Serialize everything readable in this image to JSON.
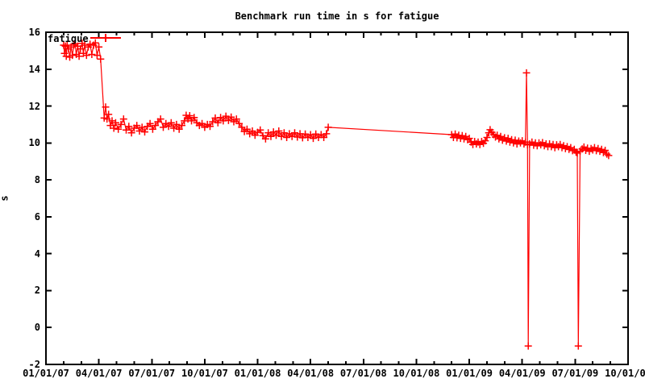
{
  "page": {
    "background": "#ffffff",
    "text_color": "#000000"
  },
  "chart_data": {
    "type": "line",
    "title": "Benchmark run time in s for fatigue",
    "xlabel": "",
    "ylabel": "s",
    "ylim": [
      -2,
      16
    ],
    "y_tick_step": 2,
    "y_tick_labels": [
      "-2",
      "0",
      "2",
      "4",
      "6",
      "8",
      "10",
      "12",
      "14",
      "16"
    ],
    "x_range_dates": [
      "01/01/07",
      "10/01/09"
    ],
    "x_span_months": 33,
    "x_major_tick_every_months": 3,
    "x_minor_tick_every_months": 1,
    "x_tick_labels": [
      "01/01/07",
      "04/01/07",
      "07/01/07",
      "10/01/07",
      "01/01/08",
      "04/01/08",
      "07/01/08",
      "10/01/08",
      "01/01/09",
      "04/01/09",
      "07/01/09",
      "10/01/09"
    ],
    "grid": "off",
    "frame_color": "#000000",
    "legend": {
      "label": "fatigue",
      "position": "top-left-inside"
    },
    "series": [
      {
        "name": "fatigue",
        "color": "#ff0000",
        "marker": "plus",
        "x_unit": "months_since_01/01/07",
        "points": [
          [
            1.0,
            15.3
          ],
          [
            1.05,
            14.85
          ],
          [
            1.1,
            15.25
          ],
          [
            1.15,
            14.7
          ],
          [
            1.2,
            15.3
          ],
          [
            1.28,
            15.1
          ],
          [
            1.35,
            14.65
          ],
          [
            1.42,
            15.2
          ],
          [
            1.5,
            14.75
          ],
          [
            1.58,
            15.3
          ],
          [
            1.65,
            15.38
          ],
          [
            1.72,
            14.8
          ],
          [
            1.8,
            15.25
          ],
          [
            1.88,
            14.7
          ],
          [
            1.95,
            15.1
          ],
          [
            2.05,
            15.4
          ],
          [
            2.12,
            14.85
          ],
          [
            2.2,
            15.3
          ],
          [
            2.3,
            14.75
          ],
          [
            2.4,
            15.2
          ],
          [
            2.5,
            15.35
          ],
          [
            2.6,
            14.8
          ],
          [
            2.7,
            15.3
          ],
          [
            2.8,
            15.42
          ],
          [
            2.9,
            14.75
          ],
          [
            3.0,
            15.2
          ],
          [
            3.1,
            14.55
          ],
          [
            3.3,
            11.35
          ],
          [
            3.38,
            11.95
          ],
          [
            3.46,
            11.3
          ],
          [
            3.55,
            11.55
          ],
          [
            3.65,
            10.95
          ],
          [
            3.75,
            11.2
          ],
          [
            3.85,
            10.8
          ],
          [
            3.95,
            11.1
          ],
          [
            4.1,
            10.75
          ],
          [
            4.25,
            11.0
          ],
          [
            4.4,
            11.3
          ],
          [
            4.55,
            10.7
          ],
          [
            4.7,
            10.9
          ],
          [
            4.85,
            10.55
          ],
          [
            5.0,
            10.8
          ],
          [
            5.15,
            10.95
          ],
          [
            5.3,
            10.65
          ],
          [
            5.45,
            10.85
          ],
          [
            5.6,
            10.6
          ],
          [
            5.75,
            10.9
          ],
          [
            5.9,
            11.05
          ],
          [
            6.05,
            10.75
          ],
          [
            6.2,
            10.95
          ],
          [
            6.35,
            11.15
          ],
          [
            6.5,
            11.3
          ],
          [
            6.65,
            10.85
          ],
          [
            6.8,
            11.05
          ],
          [
            6.95,
            10.9
          ],
          [
            7.1,
            11.1
          ],
          [
            7.25,
            10.8
          ],
          [
            7.4,
            11.0
          ],
          [
            7.55,
            10.75
          ],
          [
            7.7,
            10.95
          ],
          [
            7.85,
            11.2
          ],
          [
            7.95,
            11.5
          ],
          [
            8.05,
            11.3
          ],
          [
            8.15,
            11.48
          ],
          [
            8.25,
            11.2
          ],
          [
            8.4,
            11.38
          ],
          [
            8.55,
            11.1
          ],
          [
            8.7,
            10.95
          ],
          [
            8.85,
            11.05
          ],
          [
            9.0,
            10.85
          ],
          [
            9.15,
            11.0
          ],
          [
            9.3,
            10.9
          ],
          [
            9.45,
            11.15
          ],
          [
            9.6,
            11.35
          ],
          [
            9.75,
            11.1
          ],
          [
            9.9,
            11.38
          ],
          [
            10.05,
            11.2
          ],
          [
            10.2,
            11.45
          ],
          [
            10.35,
            11.22
          ],
          [
            10.5,
            11.4
          ],
          [
            10.65,
            11.15
          ],
          [
            10.8,
            11.3
          ],
          [
            10.95,
            11.05
          ],
          [
            11.1,
            10.85
          ],
          [
            11.25,
            10.62
          ],
          [
            11.4,
            10.75
          ],
          [
            11.55,
            10.5
          ],
          [
            11.7,
            10.65
          ],
          [
            11.85,
            10.42
          ],
          [
            12.0,
            10.58
          ],
          [
            12.15,
            10.7
          ],
          [
            12.3,
            10.4
          ],
          [
            12.45,
            10.22
          ],
          [
            12.6,
            10.55
          ],
          [
            12.75,
            10.35
          ],
          [
            12.9,
            10.6
          ],
          [
            13.05,
            10.42
          ],
          [
            13.2,
            10.65
          ],
          [
            13.35,
            10.35
          ],
          [
            13.5,
            10.55
          ],
          [
            13.65,
            10.3
          ],
          [
            13.8,
            10.5
          ],
          [
            13.95,
            10.35
          ],
          [
            14.1,
            10.55
          ],
          [
            14.25,
            10.32
          ],
          [
            14.4,
            10.5
          ],
          [
            14.55,
            10.28
          ],
          [
            14.7,
            10.48
          ],
          [
            14.85,
            10.3
          ],
          [
            15.0,
            10.45
          ],
          [
            15.15,
            10.25
          ],
          [
            15.3,
            10.48
          ],
          [
            15.45,
            10.3
          ],
          [
            15.6,
            10.45
          ],
          [
            15.75,
            10.3
          ],
          [
            15.9,
            10.5
          ],
          [
            16.0,
            10.85
          ],
          [
            23.0,
            10.45
          ],
          [
            23.1,
            10.3
          ],
          [
            23.2,
            10.48
          ],
          [
            23.3,
            10.28
          ],
          [
            23.4,
            10.42
          ],
          [
            23.5,
            10.25
          ],
          [
            23.6,
            10.4
          ],
          [
            23.7,
            10.22
          ],
          [
            23.8,
            10.35
          ],
          [
            23.9,
            10.18
          ],
          [
            24.0,
            10.25
          ],
          [
            24.1,
            10.05
          ],
          [
            24.2,
            9.92
          ],
          [
            24.3,
            10.08
          ],
          [
            24.4,
            9.95
          ],
          [
            24.5,
            10.05
          ],
          [
            24.6,
            9.92
          ],
          [
            24.7,
            10.08
          ],
          [
            24.8,
            9.98
          ],
          [
            24.9,
            10.12
          ],
          [
            25.0,
            10.3
          ],
          [
            25.1,
            10.55
          ],
          [
            25.18,
            10.72
          ],
          [
            25.28,
            10.58
          ],
          [
            25.38,
            10.45
          ],
          [
            25.48,
            10.32
          ],
          [
            25.58,
            10.42
          ],
          [
            25.68,
            10.22
          ],
          [
            25.78,
            10.35
          ],
          [
            25.88,
            10.15
          ],
          [
            26.0,
            10.28
          ],
          [
            26.1,
            10.1
          ],
          [
            26.2,
            10.25
          ],
          [
            26.3,
            10.05
          ],
          [
            26.4,
            10.18
          ],
          [
            26.5,
            10.0
          ],
          [
            26.6,
            10.15
          ],
          [
            26.7,
            9.95
          ],
          [
            26.8,
            10.1
          ],
          [
            26.9,
            10.0
          ],
          [
            27.0,
            10.12
          ],
          [
            27.1,
            9.95
          ],
          [
            27.18,
            10.05
          ],
          [
            27.24,
            13.8
          ],
          [
            27.3,
            9.9
          ],
          [
            27.34,
            -1.0
          ],
          [
            27.42,
            9.95
          ],
          [
            27.55,
            10.05
          ],
          [
            27.65,
            9.88
          ],
          [
            27.75,
            10.0
          ],
          [
            27.85,
            9.85
          ],
          [
            27.95,
            10.0
          ],
          [
            28.05,
            9.9
          ],
          [
            28.15,
            10.02
          ],
          [
            28.25,
            9.85
          ],
          [
            28.35,
            9.95
          ],
          [
            28.45,
            9.8
          ],
          [
            28.55,
            9.95
          ],
          [
            28.65,
            9.8
          ],
          [
            28.75,
            9.92
          ],
          [
            28.85,
            9.75
          ],
          [
            28.95,
            9.9
          ],
          [
            29.05,
            9.8
          ],
          [
            29.15,
            9.92
          ],
          [
            29.25,
            9.75
          ],
          [
            29.35,
            9.85
          ],
          [
            29.45,
            9.7
          ],
          [
            29.55,
            9.8
          ],
          [
            29.65,
            9.65
          ],
          [
            29.75,
            9.75
          ],
          [
            29.85,
            9.58
          ],
          [
            29.95,
            9.65
          ],
          [
            30.05,
            9.5
          ],
          [
            30.12,
            9.45
          ],
          [
            30.18,
            -1.0
          ],
          [
            30.28,
            9.55
          ],
          [
            30.4,
            9.68
          ],
          [
            30.5,
            9.78
          ],
          [
            30.6,
            9.6
          ],
          [
            30.7,
            9.72
          ],
          [
            30.8,
            9.55
          ],
          [
            30.9,
            9.7
          ],
          [
            31.0,
            9.62
          ],
          [
            31.1,
            9.75
          ],
          [
            31.2,
            9.58
          ],
          [
            31.3,
            9.7
          ],
          [
            31.4,
            9.55
          ],
          [
            31.5,
            9.65
          ],
          [
            31.6,
            9.48
          ],
          [
            31.7,
            9.6
          ],
          [
            31.8,
            9.4
          ],
          [
            31.9,
            9.32
          ]
        ]
      }
    ]
  }
}
